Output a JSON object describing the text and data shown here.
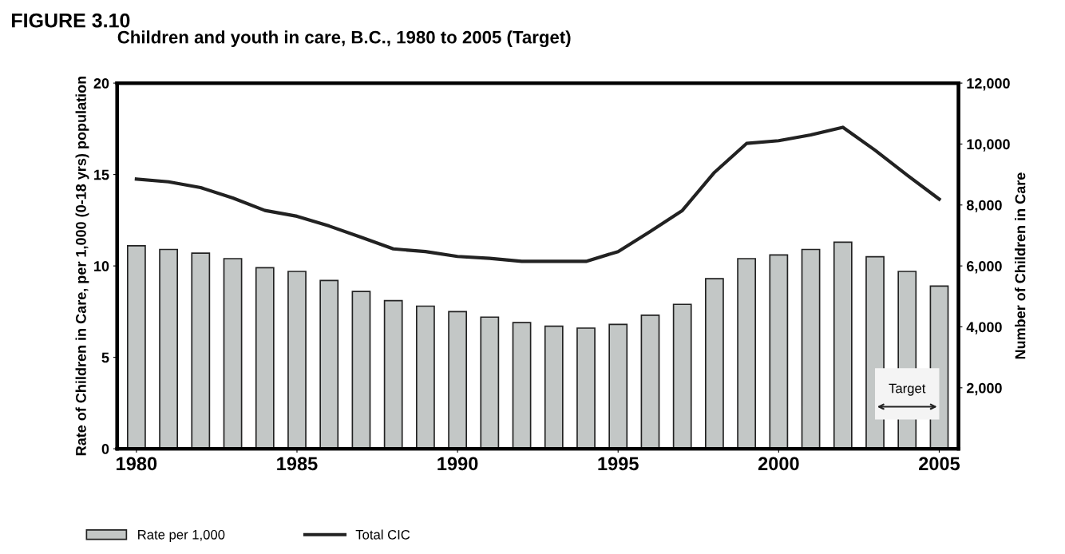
{
  "chart_data": {
    "type": "bar",
    "title": "Children and youth in care, B.C., 1980 to 2005 (Target)",
    "xlabel": null,
    "ylabel": "Rate of Children in Care, per 1,000 (0-18 yrs) population",
    "y2label": "Number of Children in Care",
    "annotations": [
      "FIGURE 3.10"
    ],
    "x": [
      1980,
      1981,
      1982,
      1983,
      1984,
      1985,
      1986,
      1987,
      1988,
      1989,
      1990,
      1991,
      1992,
      1993,
      1994,
      1995,
      1996,
      1997,
      1998,
      1999,
      2000,
      2001,
      2002,
      2003,
      2004,
      2005
    ],
    "series": [
      {
        "name": "Rate per 1,000",
        "color": "#c3c7c6",
        "values": [
          11.1,
          10.9,
          10.7,
          10.4,
          9.9,
          9.7,
          9.2,
          8.6,
          8.1,
          7.8,
          7.5,
          7.2,
          6.9,
          6.7,
          6.6,
          6.8,
          7.3,
          7.9,
          9.3,
          10.4,
          10.6,
          10.9,
          11.3,
          10.5,
          9.7,
          8.9
        ]
      },
      {
        "name": "Total CIC",
        "type": "line",
        "axis": "y2",
        "color": "#222222",
        "values": [
          8850,
          8760,
          8570,
          8230,
          7820,
          7630,
          7310,
          6940,
          6560,
          6470,
          6310,
          6250,
          6150,
          6150,
          6150,
          6470,
          7130,
          7820,
          9070,
          10020,
          10110,
          10300,
          10550,
          9800,
          8980,
          8190
        ]
      }
    ],
    "xlim": [
      1979.4,
      2005.6
    ],
    "xticks": [
      1980,
      1985,
      1990,
      1995,
      2000,
      2005
    ],
    "ylim": [
      0,
      20
    ],
    "yticks": [
      0,
      5,
      10,
      15,
      20
    ],
    "y2lim": [
      0,
      12000
    ],
    "y2ticks": [
      {
        "value": 2000,
        "label": "2,000"
      },
      {
        "value": 4000,
        "label": "4,000"
      },
      {
        "value": 6000,
        "label": "6,000"
      },
      {
        "value": 8000,
        "label": "8,000"
      },
      {
        "value": 10000,
        "label": "10,000"
      },
      {
        "value": 12000,
        "label": "12,000"
      }
    ],
    "bands": [
      {
        "axis": "x",
        "from": 2003,
        "to": 2005,
        "label": "Target",
        "color": "#f4f4f4"
      }
    ],
    "legend": "bottom",
    "grid": false,
    "marker": "none",
    "line_style": "solid"
  }
}
